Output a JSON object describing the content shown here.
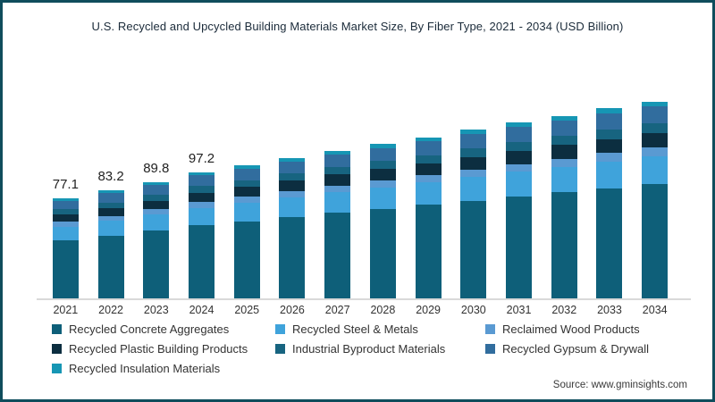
{
  "title": "U.S. Recycled and Upcycled Building Materials Market Size, By Fiber Type, 2021 - 2034 (USD Billion)",
  "source": "Source: www.gminsights.com",
  "colors": {
    "frame_border": "#0f4d5c",
    "axis_line": "#d9d9d9",
    "title_text": "#1b2b3a",
    "label_text": "#222222"
  },
  "chart_data": {
    "type": "bar",
    "stacked": true,
    "title": "U.S. Recycled and Upcycled Building Materials Market Size, By Fiber Type, 2021 - 2034 (USD Billion)",
    "xlabel": "",
    "ylabel": "",
    "y_axis_visible": false,
    "grid": false,
    "legend_position": "bottom-left",
    "categories": [
      "2021",
      "2022",
      "2023",
      "2024",
      "2025",
      "2026",
      "2027",
      "2028",
      "2029",
      "2030",
      "2031",
      "2032",
      "2033",
      "2034"
    ],
    "totals": [
      77.1,
      83.2,
      89.8,
      97.2,
      102.5,
      108.2,
      114.0,
      119.0,
      124.5,
      130.0,
      135.5,
      141.0,
      146.5,
      152.0
    ],
    "data_labels": [
      "77.1",
      "83.2",
      "89.8",
      "97.2",
      "",
      "",
      "",
      "",
      "",
      "",
      "",
      "",
      "",
      ""
    ],
    "series": [
      {
        "name": "Recycled Concrete Aggregates",
        "color": "#0e5f79",
        "values": [
          44.7,
          48.3,
          52.1,
          56.4,
          59.5,
          62.8,
          66.1,
          69.0,
          72.2,
          75.4,
          78.6,
          81.8,
          85.0,
          88.2
        ]
      },
      {
        "name": "Recycled Steel & Metals",
        "color": "#3fa3db",
        "values": [
          10.8,
          11.6,
          12.6,
          13.6,
          14.4,
          15.1,
          16.0,
          16.7,
          17.4,
          18.2,
          19.0,
          19.7,
          20.5,
          21.3
        ]
      },
      {
        "name": "Reclaimed Wood Products",
        "color": "#5a9ad2",
        "values": [
          3.5,
          3.7,
          4.0,
          4.4,
          4.6,
          4.9,
          5.1,
          5.4,
          5.6,
          5.9,
          6.1,
          6.3,
          6.6,
          6.8
        ]
      },
      {
        "name": "Recycled Plastic Building Products",
        "color": "#0c2e40",
        "values": [
          5.8,
          6.2,
          6.7,
          7.3,
          7.7,
          8.1,
          8.6,
          8.9,
          9.3,
          9.8,
          10.2,
          10.6,
          11.0,
          11.4
        ]
      },
      {
        "name": "Industrial Byproduct Materials",
        "color": "#176480",
        "values": [
          3.9,
          4.2,
          4.5,
          4.9,
          5.1,
          5.4,
          5.7,
          6.0,
          6.2,
          6.5,
          6.8,
          7.1,
          7.3,
          7.6
        ]
      },
      {
        "name": "Recycled Gypsum & Drywall",
        "color": "#316d9e",
        "values": [
          6.6,
          7.1,
          7.6,
          8.3,
          8.7,
          9.2,
          9.7,
          10.1,
          10.6,
          11.1,
          11.5,
          12.0,
          12.5,
          12.9
        ]
      },
      {
        "name": "Recycled Insulation Materials",
        "color": "#1696b4",
        "values": [
          1.9,
          2.1,
          2.2,
          2.4,
          2.6,
          2.7,
          2.9,
          3.0,
          3.1,
          3.3,
          3.4,
          3.5,
          3.7,
          3.8
        ]
      }
    ]
  }
}
